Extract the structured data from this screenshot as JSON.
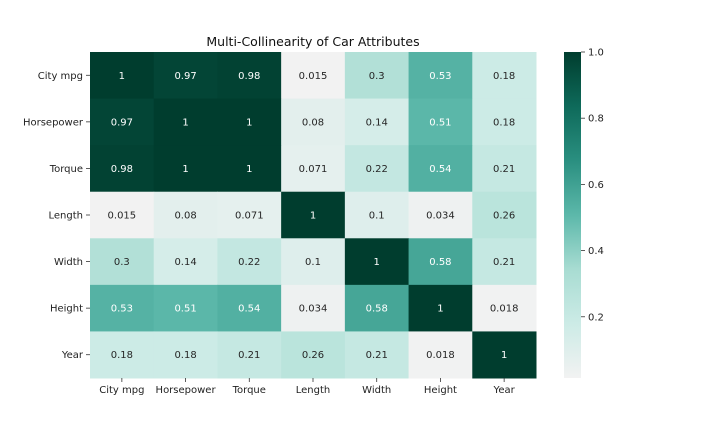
{
  "chart_data": {
    "type": "heatmap",
    "title": "Multi-Collinearity of Car Attributes",
    "xlabel": "",
    "ylabel": "",
    "rows": [
      "City mpg",
      "Horsepower",
      "Torque",
      "Length",
      "Width",
      "Height",
      "Year"
    ],
    "columns": [
      "City mpg",
      "Horsepower",
      "Torque",
      "Length",
      "Width",
      "Height",
      "Year"
    ],
    "values": [
      [
        1,
        0.97,
        0.98,
        0.015,
        0.3,
        0.53,
        0.18
      ],
      [
        0.97,
        1,
        1,
        0.08,
        0.14,
        0.51,
        0.18
      ],
      [
        0.98,
        1,
        1,
        0.071,
        0.22,
        0.54,
        0.21
      ],
      [
        0.015,
        0.08,
        0.071,
        1,
        0.1,
        0.034,
        0.26
      ],
      [
        0.3,
        0.14,
        0.22,
        0.1,
        1,
        0.58,
        0.21
      ],
      [
        0.53,
        0.51,
        0.54,
        0.034,
        0.58,
        1,
        0.018
      ],
      [
        0.18,
        0.18,
        0.21,
        0.26,
        0.21,
        0.018,
        1
      ]
    ],
    "colorbar": {
      "range": [
        0.015,
        1.0
      ],
      "ticks": [
        0.2,
        0.4,
        0.6,
        0.8,
        1.0
      ],
      "tick_labels": [
        "0.2",
        "0.4",
        "0.6",
        "0.8",
        "1.0"
      ]
    },
    "colormap": [
      "#f2f2f2",
      "#ccebe6",
      "#a8dcd2",
      "#5cb8aa",
      "#2a8f80",
      "#0e6a5a",
      "#003d2e"
    ]
  }
}
